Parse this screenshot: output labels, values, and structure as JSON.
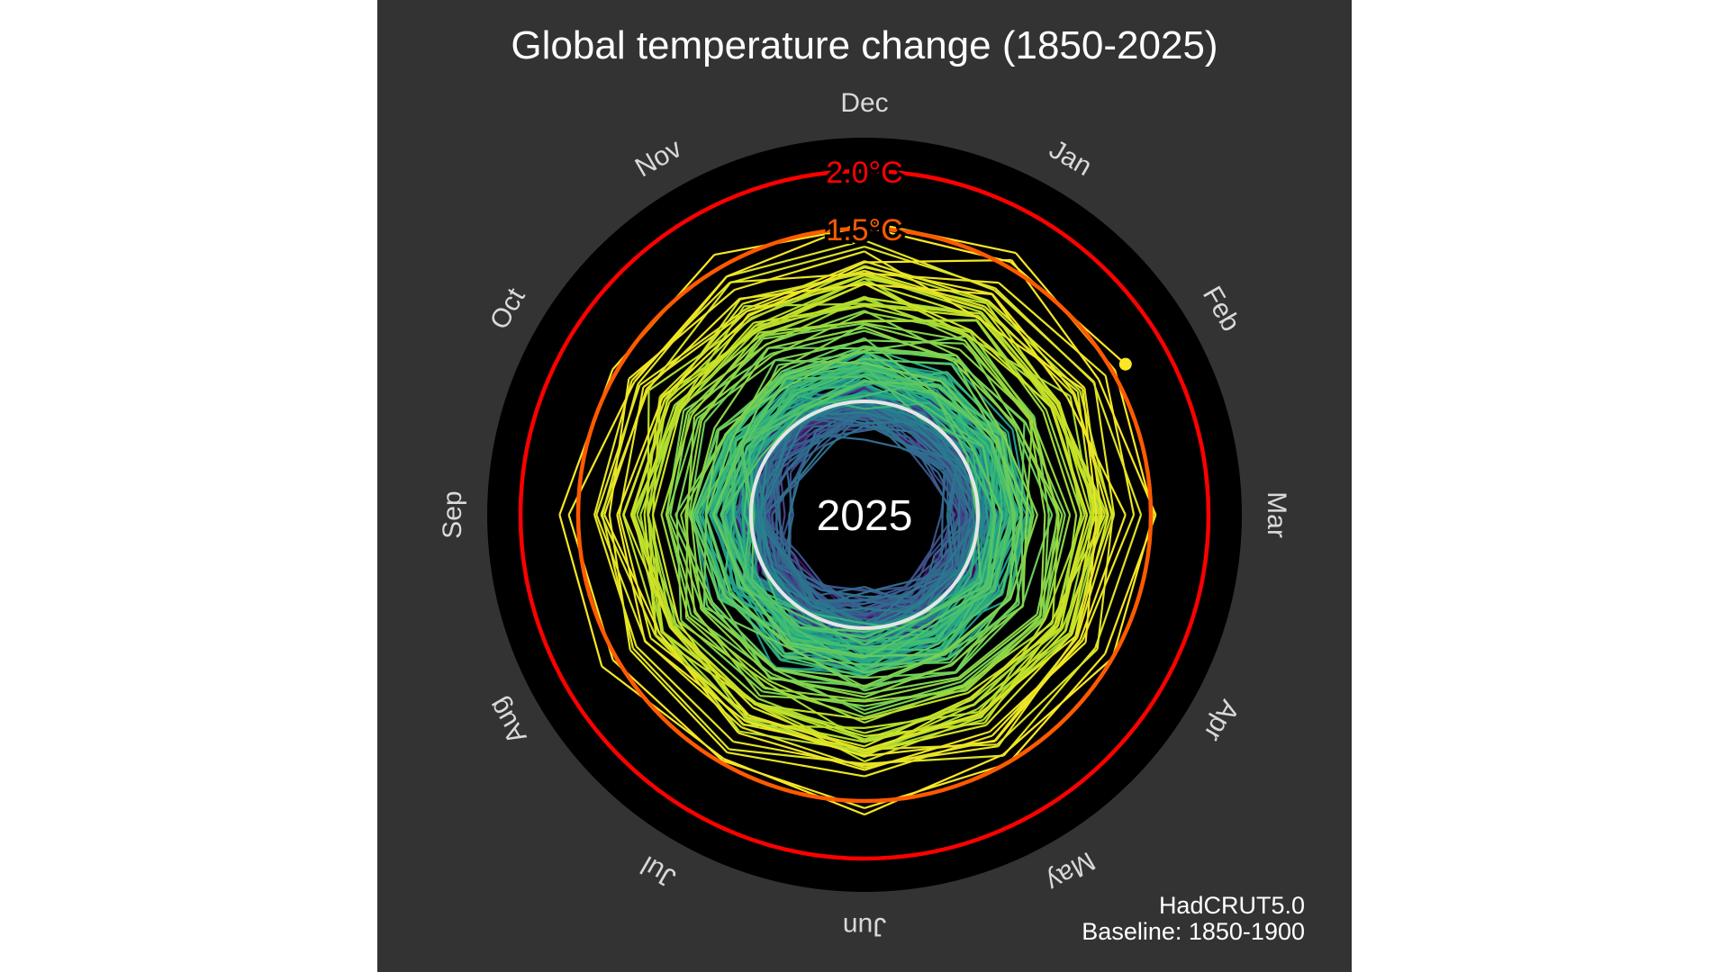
{
  "chart_data": {
    "type": "line",
    "subtype": "polar-spiral",
    "title": "Global temperature change (1850-2025)",
    "source": "HadCRUT5.0",
    "baseline": "Baseline: 1850-1900",
    "current_year_label": "2025",
    "months": [
      "Jan",
      "Feb",
      "Mar",
      "Apr",
      "May",
      "Jun",
      "Jul",
      "Aug",
      "Sep",
      "Oct",
      "Nov",
      "Dec"
    ],
    "thresholds": [
      {
        "value": 2.0,
        "label": "2.0°C",
        "color": "#ff0000"
      },
      {
        "value": 1.5,
        "label": "1.5°C",
        "color": "#ff5a00"
      },
      {
        "value": 0.0,
        "label": "",
        "color": "#e6e6e6"
      }
    ],
    "unit": "°C",
    "start_year": 1850,
    "annual_anomaly": [
      -0.05,
      0.02,
      0.03,
      -0.02,
      0.0,
      -0.01,
      -0.08,
      -0.15,
      -0.06,
      0.0,
      -0.05,
      -0.1,
      -0.15,
      0.02,
      -0.09,
      0.0,
      0.02,
      -0.01,
      0.03,
      0.01,
      -0.02,
      -0.05,
      0.0,
      0.0,
      -0.03,
      -0.07,
      -0.08,
      0.2,
      0.25,
      -0.05,
      -0.03,
      0.03,
      -0.01,
      -0.08,
      -0.15,
      -0.17,
      -0.13,
      -0.2,
      -0.08,
      0.03,
      -0.2,
      -0.12,
      -0.2,
      -0.2,
      -0.16,
      -0.13,
      0.03,
      0.05,
      -0.13,
      -0.02,
      0.07,
      0.0,
      -0.07,
      -0.15,
      -0.18,
      -0.11,
      -0.05,
      -0.2,
      -0.22,
      -0.22,
      -0.17,
      -0.15,
      -0.16,
      -0.18,
      -0.05,
      0.06,
      0.01,
      -0.2,
      -0.12,
      -0.04,
      -0.01,
      0.03,
      -0.02,
      0.05,
      0.02,
      0.0,
      0.1,
      0.14,
      0.05,
      0.12,
      0.2,
      0.15,
      0.12,
      0.25,
      0.1,
      0.16,
      0.2,
      0.28,
      0.28,
      0.25,
      0.34,
      0.4,
      0.3,
      0.33,
      0.45,
      0.35,
      0.22,
      0.2,
      0.24,
      0.15,
      0.15,
      0.27,
      0.3,
      0.18,
      0.09,
      0.08,
      0.18,
      0.33,
      0.37,
      0.23,
      0.27,
      0.32,
      0.34,
      0.37,
      0.07,
      0.15,
      0.22,
      0.26,
      0.25,
      0.3,
      0.29,
      0.15,
      0.24,
      0.36,
      0.13,
      0.25,
      0.35,
      0.18,
      0.1,
      0.38,
      0.24,
      0.43,
      0.5,
      0.38,
      0.59,
      0.48,
      0.46,
      0.52,
      0.71,
      0.67,
      0.75,
      0.68,
      0.53,
      0.56,
      0.68,
      0.78,
      0.66,
      0.84,
      1.0,
      0.8,
      0.84,
      0.95,
      0.98,
      0.97,
      1.04,
      1.03,
      1.0,
      1.0,
      0.89,
      1.05,
      0.96,
      0.98,
      0.99,
      1.07,
      1.2,
      1.3,
      1.2,
      1.09,
      1.23,
      1.29,
      1.13,
      1.16,
      1.46,
      1.55
    ],
    "months_2025": [
      1.55,
      1.63
    ],
    "rlim": [
      -1.0,
      2.0
    ]
  }
}
